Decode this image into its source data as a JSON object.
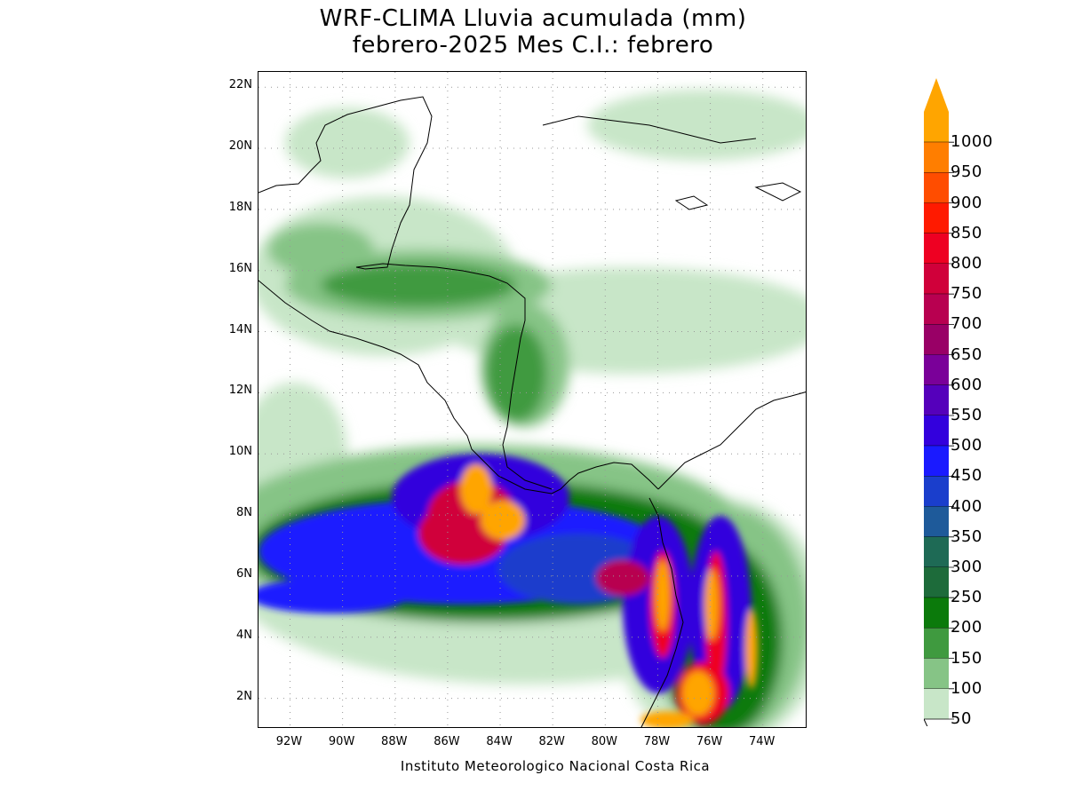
{
  "title": {
    "line1": "WRF-CLIMA Lluvia acumulada (mm)",
    "line2": "febrero-2025 Mes C.I.: febrero"
  },
  "credit": "Instituto Meteorologico Nacional Costa Rica",
  "axes": {
    "lon_ticks": [
      "92W",
      "90W",
      "88W",
      "86W",
      "84W",
      "82W",
      "80W",
      "78W",
      "76W",
      "74W"
    ],
    "lat_ticks": [
      "22N",
      "20N",
      "18N",
      "16N",
      "14N",
      "12N",
      "10N",
      "8N",
      "6N",
      "4N",
      "2N"
    ]
  },
  "colorbar": {
    "levels": [
      "1000",
      "950",
      "900",
      "850",
      "800",
      "750",
      "700",
      "650",
      "600",
      "550",
      "500",
      "450",
      "400",
      "350",
      "300",
      "250",
      "200",
      "150",
      "100",
      "50"
    ],
    "colors": [
      "#ffa500",
      "#ff7e00",
      "#ff4d00",
      "#ff1a00",
      "#ee0022",
      "#d0003a",
      "#b80050",
      "#990066",
      "#7a0099",
      "#5500bb",
      "#3300dd",
      "#1a1aff",
      "#1a3ecc",
      "#1e5a9a",
      "#1e6a55",
      "#1d6b3a",
      "#0b7a0b",
      "#3f9a3f",
      "#86c486",
      "#c8e6c8"
    ]
  },
  "map": {
    "projection": "lat-lon",
    "lon_range": [
      -93.2,
      -72.3
    ],
    "lat_range": [
      1.0,
      22.5
    ]
  }
}
